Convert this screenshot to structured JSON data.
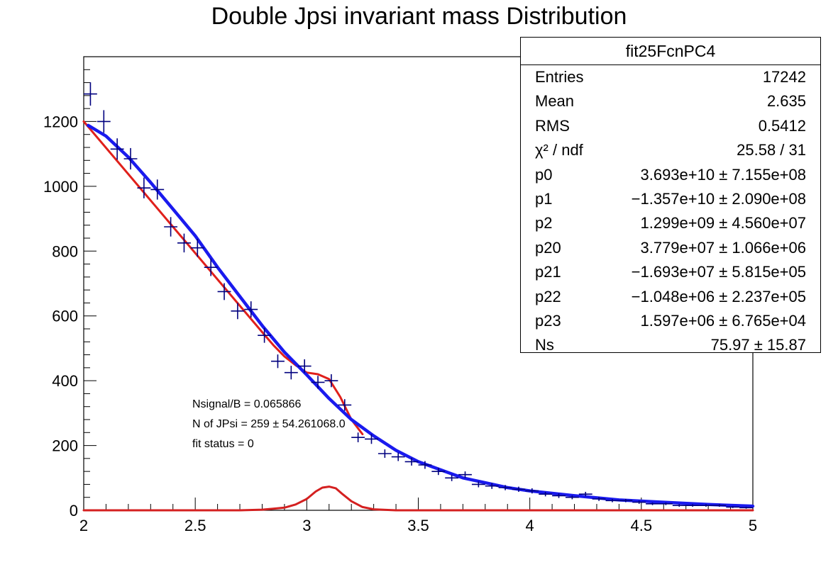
{
  "title": "Double Jpsi invariant mass Distribution",
  "stats": {
    "name": "fit25FcnPC4",
    "rows": [
      {
        "label": "Entries",
        "value": "17242"
      },
      {
        "label": "Mean",
        "value": "2.635"
      },
      {
        "label": "RMS",
        "value": "0.5412"
      },
      {
        "label": "χ² / ndf",
        "value": "25.58 / 31"
      },
      {
        "label": "p0",
        "value": "3.693e+10 ± 7.155e+08"
      },
      {
        "label": "p1",
        "value": "−1.357e+10 ± 2.090e+08"
      },
      {
        "label": "p2",
        "value": "1.299e+09 ± 4.560e+07"
      },
      {
        "label": "p20",
        "value": "3.779e+07 ± 1.066e+06"
      },
      {
        "label": "p21",
        "value": "−1.693e+07 ± 5.815e+05"
      },
      {
        "label": "p22",
        "value": "−1.048e+06 ± 2.237e+05"
      },
      {
        "label": "p23",
        "value": "1.597e+06 ± 6.765e+04"
      },
      {
        "label": "Ns",
        "value": "75.97 ± 15.87"
      }
    ]
  },
  "annotations": [
    "Nsignal/B = 0.065866",
    "N of JPsi = 259 ± 54.261068.0",
    "fit status = 0"
  ],
  "chart_data": {
    "type": "scatter",
    "xlim": [
      2,
      5
    ],
    "ylim": [
      0,
      1400
    ],
    "xticks": [
      "2",
      "2.5",
      "3",
      "3.5",
      "4",
      "4.5",
      "5"
    ],
    "yticks": [
      "0",
      "200",
      "400",
      "600",
      "800",
      "1000",
      "1200"
    ],
    "bin_width": 0.06,
    "series": [
      {
        "style": "points",
        "color": "#00007f",
        "x": [
          2.03,
          2.09,
          2.15,
          2.21,
          2.27,
          2.33,
          2.39,
          2.45,
          2.51,
          2.57,
          2.63,
          2.69,
          2.75,
          2.81,
          2.87,
          2.93,
          2.99,
          3.05,
          3.11,
          3.17,
          3.23,
          3.29,
          3.35,
          3.41,
          3.47,
          3.53,
          3.59,
          3.65,
          3.71,
          3.77,
          3.83,
          3.89,
          3.95,
          4.01,
          4.07,
          4.13,
          4.19,
          4.25,
          4.31,
          4.37,
          4.43,
          4.49,
          4.55,
          4.61,
          4.67,
          4.73,
          4.79,
          4.85,
          4.91,
          4.97
        ],
        "y": [
          1285,
          1200,
          1115,
          1085,
          995,
          990,
          875,
          825,
          810,
          750,
          675,
          615,
          620,
          540,
          460,
          425,
          445,
          395,
          400,
          325,
          225,
          220,
          175,
          165,
          150,
          140,
          120,
          100,
          110,
          80,
          75,
          70,
          65,
          60,
          50,
          45,
          40,
          50,
          35,
          30,
          30,
          25,
          20,
          20,
          15,
          15,
          15,
          15,
          10,
          8
        ],
        "yerr": [
          36,
          35,
          33,
          33,
          32,
          31,
          30,
          29,
          28,
          27,
          26,
          25,
          25,
          23,
          21,
          21,
          21,
          20,
          20,
          18,
          15,
          15,
          13,
          13,
          12,
          12,
          11,
          10,
          10,
          9,
          9,
          8,
          8,
          8,
          7,
          7,
          6,
          7,
          6,
          5,
          5,
          5,
          4,
          4,
          4,
          4,
          4,
          4,
          3,
          3
        ]
      },
      {
        "style": "line",
        "color": "#e0201b",
        "x": [
          2.0,
          2.8,
          2.85,
          2.9,
          2.95,
          3.0,
          3.05,
          3.1,
          3.15,
          3.2,
          3.25
        ],
        "y": [
          1200,
          550,
          510,
          475,
          448,
          425,
          420,
          405,
          350,
          280,
          235
        ]
      },
      {
        "style": "line",
        "color": "#1a1aee",
        "x": [
          2.02,
          2.1,
          2.2,
          2.3,
          2.4,
          2.5,
          2.6,
          2.7,
          2.8,
          2.9,
          3.0,
          3.1,
          3.2,
          3.3,
          3.4,
          3.5,
          3.6,
          3.7,
          3.8,
          3.9,
          4.0,
          4.2,
          4.4,
          4.6,
          4.8,
          5.0
        ],
        "y": [
          1188,
          1155,
          1090,
          1012,
          930,
          847,
          750,
          660,
          570,
          488,
          418,
          345,
          280,
          230,
          185,
          150,
          125,
          100,
          85,
          70,
          60,
          45,
          32,
          25,
          18,
          13
        ]
      },
      {
        "style": "line",
        "color": "#d42020",
        "x": [
          2.0,
          2.7,
          2.8,
          2.9,
          2.95,
          3.0,
          3.04,
          3.07,
          3.1,
          3.13,
          3.16,
          3.2,
          3.25,
          3.3,
          3.4,
          5.0
        ],
        "y": [
          0,
          0,
          2,
          8,
          18,
          35,
          58,
          70,
          73,
          68,
          50,
          28,
          10,
          3,
          0,
          0
        ]
      }
    ]
  }
}
